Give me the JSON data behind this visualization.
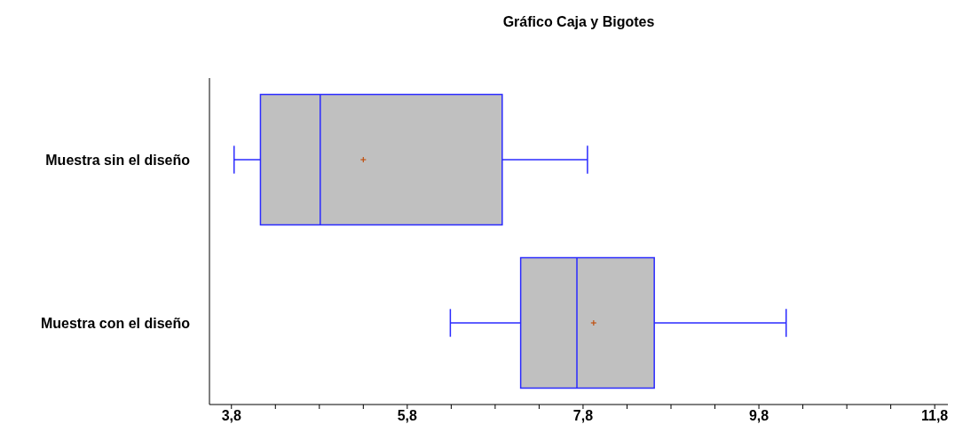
{
  "chart_data": {
    "type": "box",
    "title": "Gráfico Caja y Bigotes",
    "orientation": "horizontal",
    "categories": [
      "Muestra sin el diseño",
      "Muestra con el diseño"
    ],
    "series": [
      {
        "color": "#c0c0c0",
        "boxes": [
          {
            "low": 3.83,
            "q1": 4.13,
            "median": 4.81,
            "q3": 6.88,
            "high": 7.85,
            "mean": 5.3
          },
          {
            "low": 6.29,
            "q1": 7.09,
            "median": 7.73,
            "q3": 8.61,
            "high": 10.11,
            "mean": 7.92
          }
        ]
      }
    ],
    "xlim": [
      3.55,
      11.95
    ],
    "xticks": [
      {
        "value": 3.8,
        "label": "3,8"
      },
      {
        "value": 4.3,
        "label": null
      },
      {
        "value": 4.8,
        "label": null
      },
      {
        "value": 5.3,
        "label": null
      },
      {
        "value": 5.8,
        "label": "5,8"
      },
      {
        "value": 6.3,
        "label": null
      },
      {
        "value": 6.8,
        "label": null
      },
      {
        "value": 7.3,
        "label": null
      },
      {
        "value": 7.8,
        "label": "7,8"
      },
      {
        "value": 8.3,
        "label": null
      },
      {
        "value": 8.8,
        "label": null
      },
      {
        "value": 9.3,
        "label": null
      },
      {
        "value": 9.8,
        "label": "9,8"
      },
      {
        "value": 10.3,
        "label": null
      },
      {
        "value": 10.8,
        "label": null
      },
      {
        "value": 11.3,
        "label": null
      },
      {
        "value": 11.8,
        "label": "11,8"
      }
    ],
    "grid": false,
    "legend": false
  }
}
